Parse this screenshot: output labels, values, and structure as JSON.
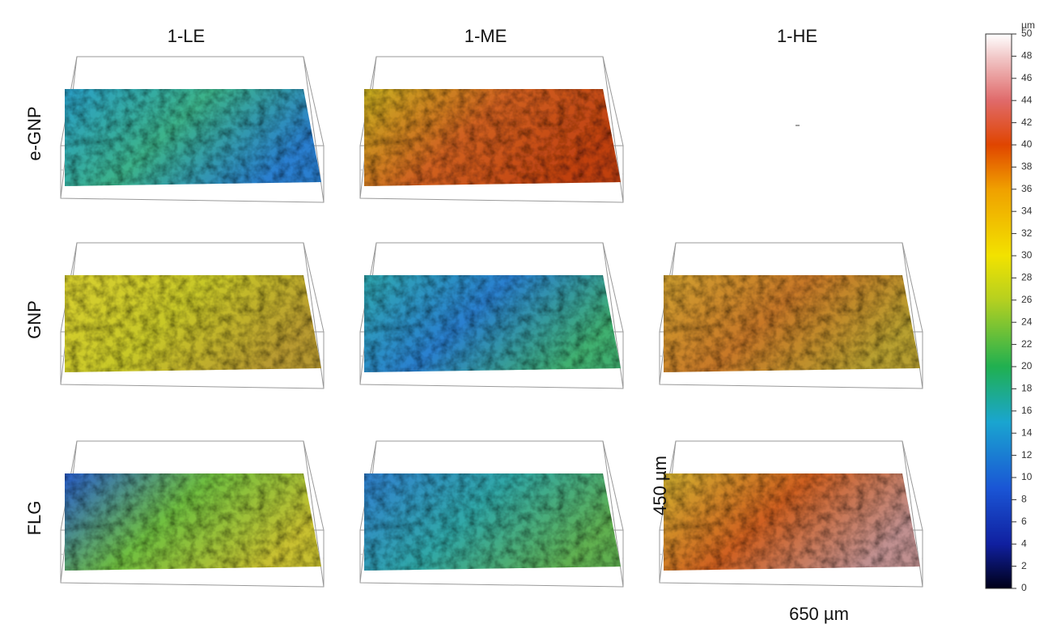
{
  "columns": [
    "1-LE",
    "1-ME",
    "1-HE"
  ],
  "rows": [
    "e-GNP",
    "GNP",
    "FLG"
  ],
  "colorbar": {
    "unit": "µm",
    "range": [
      0,
      50
    ],
    "ticks": [
      0,
      2,
      4,
      6,
      8,
      10,
      12,
      14,
      16,
      18,
      20,
      22,
      24,
      26,
      28,
      30,
      32,
      34,
      36,
      38,
      40,
      42,
      44,
      46,
      48,
      50
    ]
  },
  "dimensions": {
    "depth": "450 µm",
    "width": "650 µm"
  }
}
